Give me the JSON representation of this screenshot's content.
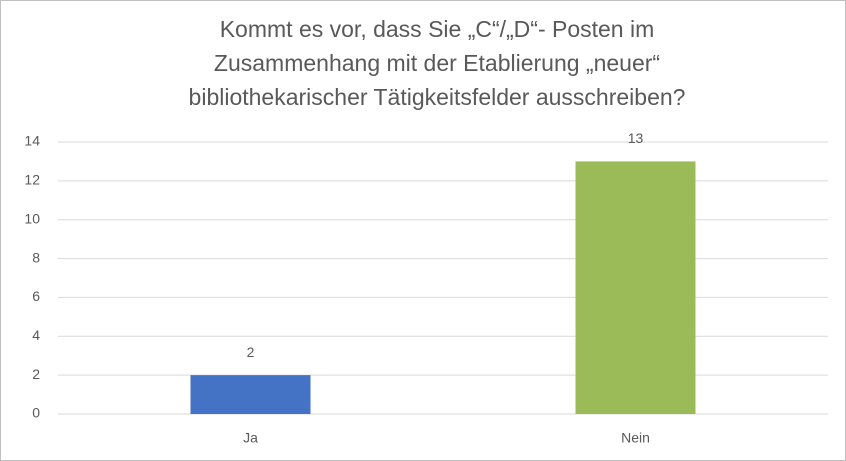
{
  "chart_data": {
    "type": "bar",
    "title": "Kommt es vor, dass Sie „C“/„D“- Posten im Zusammenhang mit der Etablierung „neuer“ bibliothekarischer Tätigkeitsfelder ausschreiben?",
    "categories": [
      "Ja",
      "Nein"
    ],
    "values": [
      2,
      13
    ],
    "colors": [
      "#4472c4",
      "#9bbb59"
    ],
    "ylim": [
      0,
      14
    ],
    "yticks": [
      0,
      2,
      4,
      6,
      8,
      10,
      12,
      14
    ],
    "grid": true
  }
}
